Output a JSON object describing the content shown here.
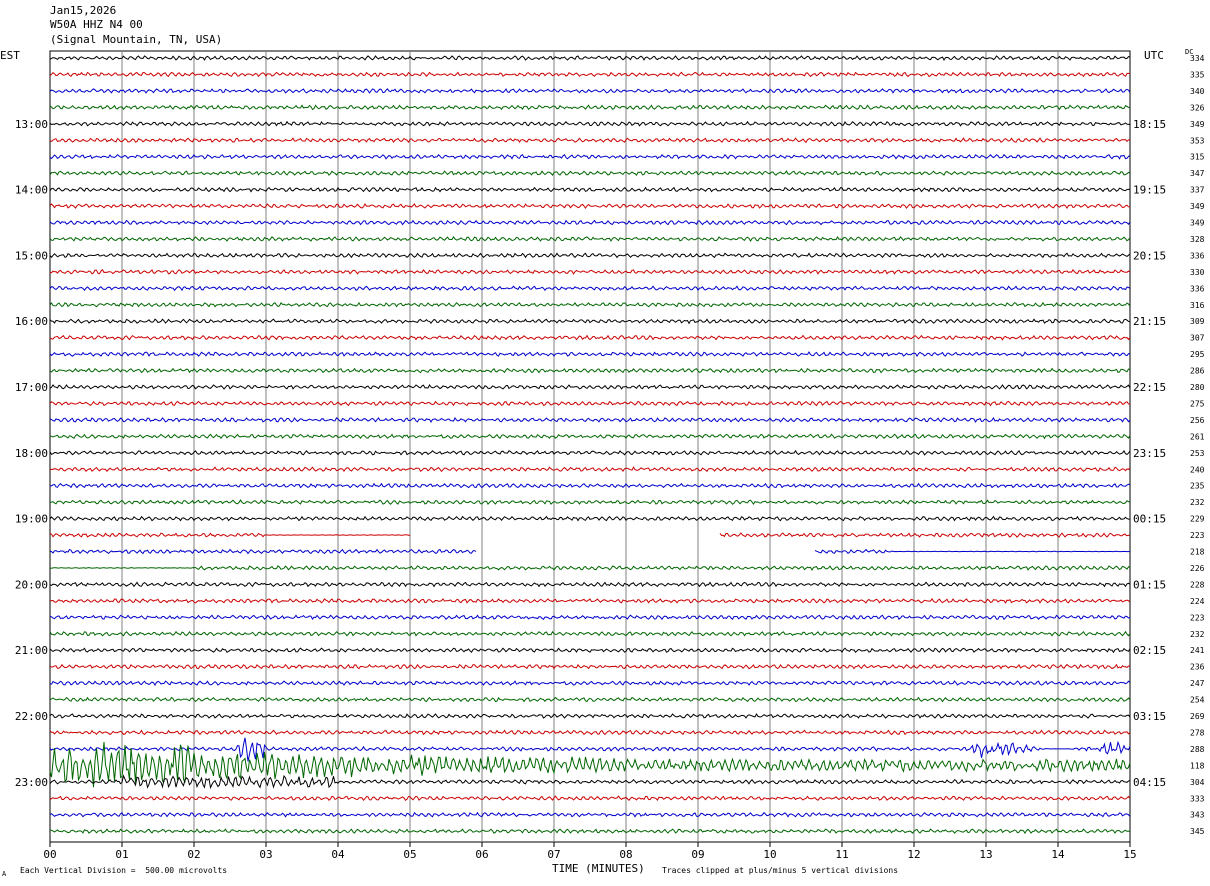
{
  "header": {
    "date": "Jan15,2026",
    "station": "W50A HHZ N4 00",
    "location": "(Signal Mountain, TN, USA)"
  },
  "left_tz": "EST",
  "right_tz": "UTC",
  "dc_label": "DC",
  "footer": {
    "vertical_division": "Each Vertical Division =  500.00 microvolts",
    "clip_note": "Traces clipped at plus/minus 5 vertical divisions",
    "corner_mark": "A"
  },
  "colors": {
    "black": "#000000",
    "red": "#cc0000",
    "blue": "#0000cc",
    "green": "#006600",
    "grid": "#808080"
  },
  "chart_data": {
    "type": "line",
    "xlabel": "TIME (MINUTES)",
    "x_ticks": [
      "00",
      "01",
      "02",
      "03",
      "04",
      "05",
      "06",
      "07",
      "08",
      "09",
      "10",
      "11",
      "12",
      "13",
      "14",
      "15"
    ],
    "xlim": [
      0,
      15
    ],
    "left_hour_labels": [
      "13:00",
      "14:00",
      "15:00",
      "16:00",
      "17:00",
      "18:00",
      "19:00",
      "20:00",
      "21:00",
      "22:00",
      "23:00"
    ],
    "right_hour_labels": [
      "18:15",
      "19:15",
      "20:15",
      "21:15",
      "22:15",
      "23:15",
      "00:15",
      "01:15",
      "02:15",
      "03:15",
      "04:15"
    ],
    "trace_color_cycle": [
      "black",
      "red",
      "blue",
      "green"
    ],
    "dc_offsets": [
      334,
      335,
      340,
      326,
      349,
      353,
      315,
      347,
      337,
      349,
      349,
      328,
      336,
      330,
      336,
      316,
      309,
      307,
      295,
      286,
      280,
      275,
      256,
      261,
      253,
      240,
      235,
      232,
      229,
      223,
      218,
      226,
      228,
      224,
      223,
      232,
      241,
      236,
      247,
      254,
      269,
      278,
      288,
      118,
      304,
      333,
      343,
      345
    ]
  }
}
